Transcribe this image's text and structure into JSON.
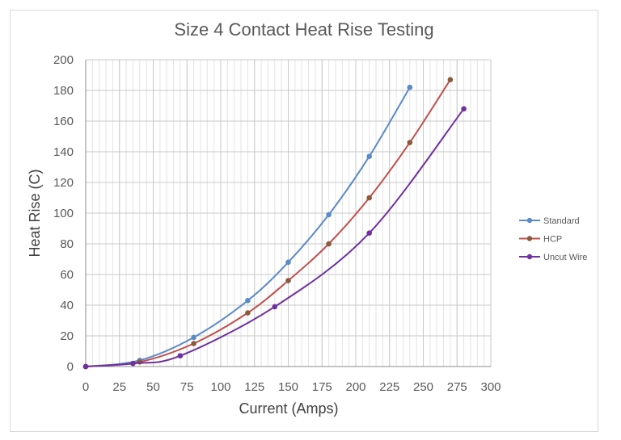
{
  "chart_data": {
    "type": "line",
    "title": "Size 4 Contact Heat Rise Testing",
    "xlabel": "Current (Amps)",
    "ylabel": "Heat Rise (C)",
    "xlim": [
      0,
      300
    ],
    "ylim": [
      0,
      200
    ],
    "x_ticks": [
      0,
      25,
      50,
      75,
      100,
      125,
      150,
      175,
      200,
      225,
      250,
      275,
      300
    ],
    "y_ticks": [
      0,
      20,
      40,
      60,
      80,
      100,
      120,
      140,
      160,
      180,
      200
    ],
    "x_minor_step": 5,
    "legend_position": "right",
    "series": [
      {
        "name": "Standard",
        "color": "#5b8ac9",
        "x": [
          0,
          40,
          80,
          120,
          150,
          180,
          210,
          240
        ],
        "y": [
          0,
          4,
          19,
          43,
          68,
          99,
          137,
          182
        ]
      },
      {
        "name": "HCP",
        "color": "#c0504d",
        "marker_color": "#8b5a3c",
        "x": [
          0,
          40,
          80,
          120,
          150,
          180,
          210,
          240,
          270
        ],
        "y": [
          0,
          3,
          15,
          35,
          56,
          80,
          110,
          146,
          187
        ]
      },
      {
        "name": "Uncut Wire",
        "color": "#7030a0",
        "x": [
          0,
          35,
          70,
          140,
          210,
          280
        ],
        "y": [
          0,
          2,
          7,
          39,
          87,
          168
        ]
      }
    ]
  }
}
